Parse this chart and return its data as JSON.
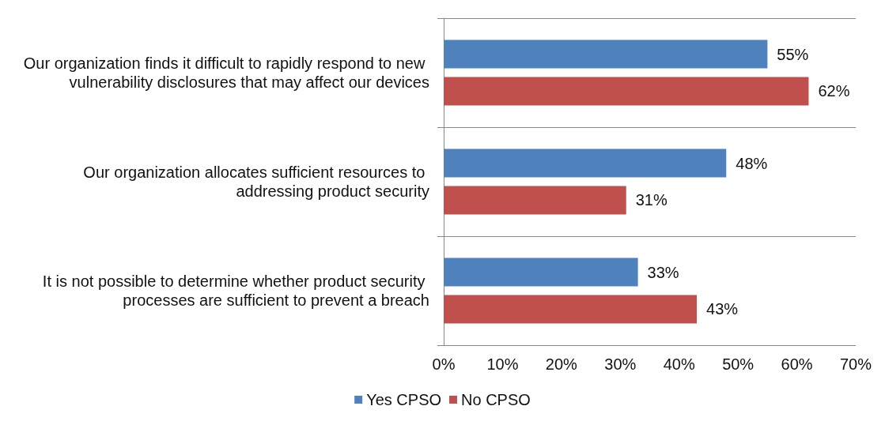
{
  "chart_data": {
    "type": "bar",
    "orientation": "horizontal",
    "categories": [
      "Our organization finds it difficult to rapidly respond to new vulnerability disclosures that may affect our devices",
      "Our organization allocates sufficient resources to addressing product security",
      "It is not possible to determine whether product security processes are sufficient to prevent a breach"
    ],
    "series": [
      {
        "name": "Yes CPSO",
        "color": "#4f81bd",
        "values": [
          55,
          48,
          33
        ],
        "value_labels": [
          "55%",
          "48%",
          "33%"
        ]
      },
      {
        "name": "No CPSO",
        "color": "#c0504d",
        "values": [
          62,
          31,
          43
        ],
        "value_labels": [
          "62%",
          "31%",
          "43%"
        ]
      }
    ],
    "xlim": [
      0,
      70
    ],
    "xticks": [
      {
        "value": 0,
        "label": "0%"
      },
      {
        "value": 10,
        "label": "10%"
      },
      {
        "value": 20,
        "label": "20%"
      },
      {
        "value": 30,
        "label": "30%"
      },
      {
        "value": 40,
        "label": "40%"
      },
      {
        "value": 50,
        "label": "50%"
      },
      {
        "value": 60,
        "label": "60%"
      },
      {
        "value": 70,
        "label": "70%"
      }
    ],
    "grid": "y",
    "legend": "bottom"
  }
}
